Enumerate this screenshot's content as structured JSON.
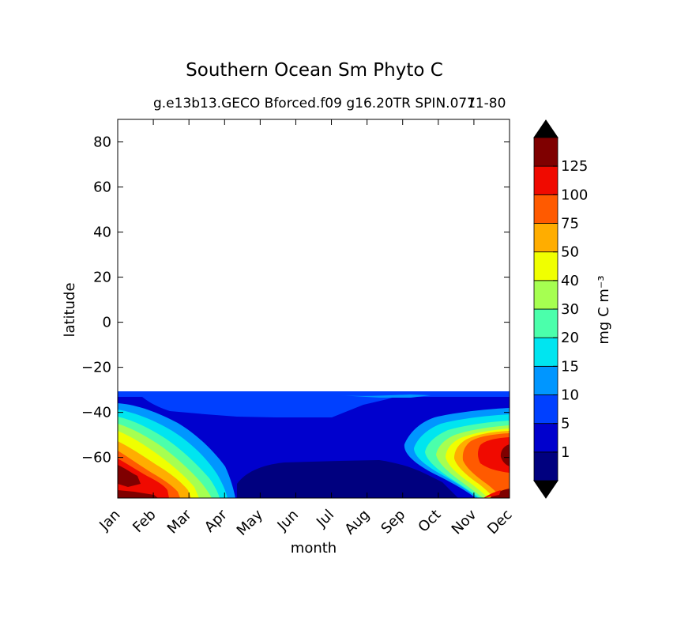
{
  "chart_data": {
    "type": "heatmap",
    "title": "Southern Ocean Sm Phyto C",
    "subtitle": "g.e13b13.GECO Bforced.f09 g16.20TR SPIN.071",
    "subtitle_years": "71-80",
    "xlabel": "month",
    "ylabel": "latitude",
    "x_categories": [
      "Jan",
      "Feb",
      "Mar",
      "Apr",
      "May",
      "Jun",
      "Jul",
      "Aug",
      "Sep",
      "Oct",
      "Nov",
      "Dec"
    ],
    "ylim": [
      -78,
      90
    ],
    "y_ticks": [
      80,
      60,
      40,
      20,
      0,
      -20,
      -40,
      -60
    ],
    "y_tick_labels": [
      "80",
      "60",
      "40",
      "20",
      "0",
      "−20",
      "−40",
      "−60"
    ],
    "data_lat_max": -31,
    "colorbar": {
      "label": "mg C m⁻³",
      "levels": [
        1,
        5,
        10,
        15,
        20,
        30,
        40,
        50,
        75,
        100,
        125
      ],
      "tick_labels": [
        "1",
        "5",
        "10",
        "15",
        "20",
        "30",
        "40",
        "50",
        "75",
        "100",
        "125"
      ],
      "colors": [
        "#00007f",
        "#0000cd",
        "#0040ff",
        "#0096ff",
        "#00e5f0",
        "#4bffab",
        "#a6ff51",
        "#f0ff00",
        "#ffad00",
        "#ff5a00",
        "#f00a00",
        "#7f0000"
      ],
      "extend": "both"
    }
  }
}
